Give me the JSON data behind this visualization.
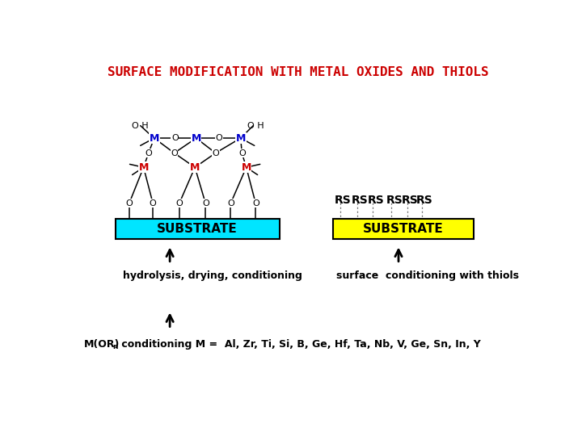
{
  "title": "SURFACE MODIFICATION WITH METAL OXIDES AND THIOLS",
  "title_color": "#cc0000",
  "title_fontsize": 11.5,
  "bg_color": "#ffffff",
  "left_substrate_color": "#00e5ff",
  "right_substrate_color": "#ffff00",
  "substrate_text": "SUBSTRATE",
  "substrate_fontsize": 11,
  "M_top_color": "#0000cc",
  "M_mid_color": "#cc0000",
  "O_color": "#000000",
  "hydrolysis_text": "hydrolysis, drying, conditioning",
  "surface_cond_text": "surface  conditioning with thiols",
  "mor_text": "M(OR)n conditioning M =  Al, Zr, Ti, Si, B, Ge, Hf, Ta, Nb, V, Ge, Sn, In, Y",
  "rs_labels": [
    "RS",
    "RS",
    "RS",
    "RS",
    "RS",
    "RS"
  ]
}
